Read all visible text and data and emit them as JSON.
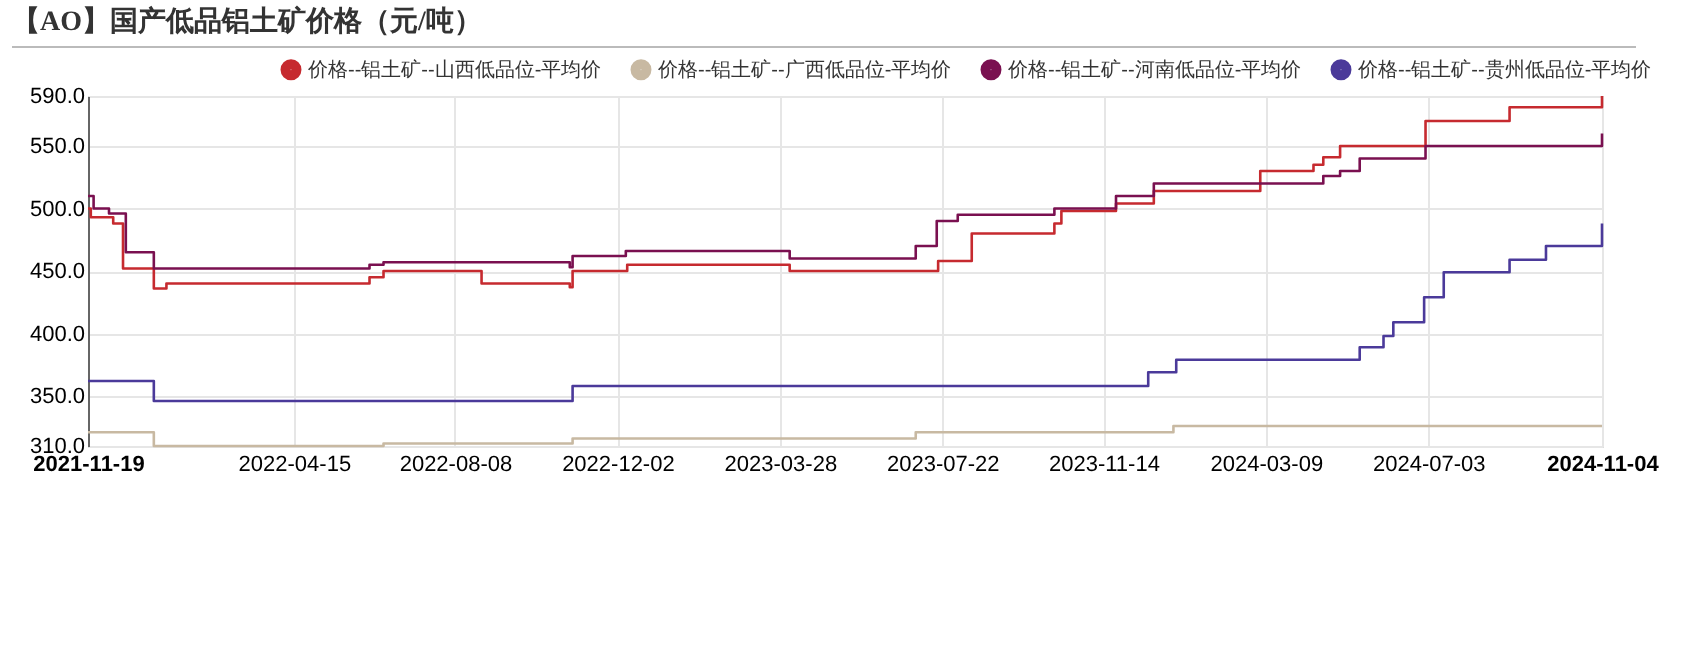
{
  "chart_data": {
    "type": "step",
    "title": "【AO】国产低品铝土矿价格（元/吨）",
    "xlim": [
      "2021-11-19",
      "2024-11-04"
    ],
    "xticks": [
      "2021-11-19",
      "2022-04-15",
      "2022-08-08",
      "2022-12-02",
      "2023-03-28",
      "2023-07-22",
      "2023-11-14",
      "2024-03-09",
      "2024-07-03",
      "2024-11-04"
    ],
    "ylim": [
      310,
      590
    ],
    "yticks": [
      {
        "value": 310,
        "label": "310.0"
      },
      {
        "value": 350,
        "label": "350.0"
      },
      {
        "value": 400,
        "label": "400.0"
      },
      {
        "value": 450,
        "label": "450.0"
      },
      {
        "value": 500,
        "label": "500.0"
      },
      {
        "value": 550,
        "label": "550.0"
      },
      {
        "value": 590,
        "label": "590.0"
      }
    ],
    "grid": true,
    "legend": "top right",
    "series": [
      {
        "name": "价格--铝土矿--山西低品位-平均价",
        "color": "#c62a2f",
        "x": [
          "2021-11-19",
          "2021-11-21",
          "2021-12-07",
          "2021-12-14",
          "2022-01-05",
          "2022-01-14",
          "2022-06-08",
          "2022-06-18",
          "2022-08-27",
          "2022-10-29",
          "2022-10-31",
          "2022-12-09",
          "2023-04-04",
          "2023-07-19",
          "2023-08-12",
          "2023-10-10",
          "2023-10-15",
          "2023-11-23",
          "2023-12-20",
          "2024-03-05",
          "2024-04-12",
          "2024-04-19",
          "2024-05-01",
          "2024-07-01",
          "2024-08-30",
          "2024-11-04"
        ],
        "values": [
          500,
          493,
          488,
          452,
          436,
          440,
          445,
          450,
          440,
          437,
          450,
          455,
          450,
          458,
          480,
          488,
          498,
          504,
          514,
          530,
          535,
          541,
          550,
          570,
          581,
          590
        ]
      },
      {
        "name": "价格--铝土矿--广西低品位-平均价",
        "color": "#c8b9a2",
        "x": [
          "2021-11-19",
          "2022-01-05",
          "2022-06-18",
          "2022-10-31",
          "2023-07-03",
          "2024-01-03",
          "2024-11-04"
        ],
        "values": [
          321,
          310,
          312,
          316,
          321,
          326,
          326
        ]
      },
      {
        "name": "价格--铝土矿--河南低品位-平均价",
        "color": "#7a1050",
        "x": [
          "2021-11-19",
          "2021-11-23",
          "2021-12-04",
          "2021-12-16",
          "2022-01-05",
          "2022-06-08",
          "2022-06-18",
          "2022-10-29",
          "2022-10-31",
          "2022-12-08",
          "2023-04-04",
          "2023-07-03",
          "2023-07-18",
          "2023-08-02",
          "2023-10-10",
          "2023-11-23",
          "2023-12-20",
          "2024-04-19",
          "2024-05-01",
          "2024-05-15",
          "2024-07-01",
          "2024-11-04"
        ],
        "values": [
          510,
          500,
          496,
          465,
          452,
          455,
          457,
          453,
          462,
          466,
          460,
          470,
          490,
          495,
          500,
          510,
          520,
          526,
          530,
          540,
          550,
          560
        ]
      },
      {
        "name": "价格--铝土矿--贵州低品位-平均价",
        "color": "#4b3a9a",
        "x": [
          "2021-11-19",
          "2022-01-05",
          "2022-10-31",
          "2023-12-16",
          "2024-01-05",
          "2024-05-15",
          "2024-06-01",
          "2024-06-08",
          "2024-06-30",
          "2024-07-14",
          "2024-08-30",
          "2024-09-25",
          "2024-11-04"
        ],
        "values": [
          362,
          346,
          358,
          369,
          379,
          389,
          398,
          409,
          429,
          449,
          459,
          470,
          488
        ]
      }
    ]
  }
}
